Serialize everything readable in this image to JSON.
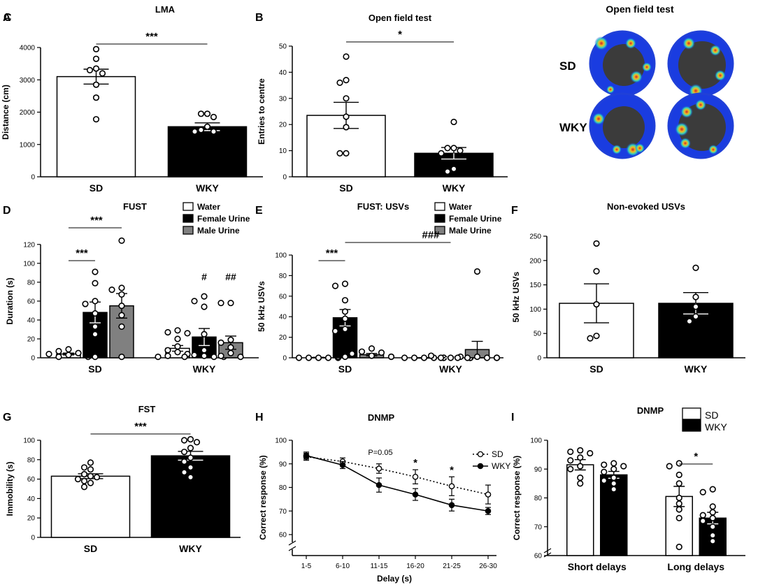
{
  "chart_data": [
    {
      "id": "A",
      "letter": "A",
      "type": "bar",
      "title": "LMA",
      "ylabel": "Distance (cm)",
      "ylim": [
        0,
        4000
      ],
      "yticks": [
        "0",
        "1000",
        "2000",
        "3000",
        "4000"
      ],
      "ytick_values": [
        0,
        1000,
        2000,
        3000,
        4000
      ],
      "categories": [
        "SD",
        "WKY"
      ],
      "groups": [
        {
          "label": "SD",
          "series": [
            {
              "name": "SD",
              "fill": "#ffffff",
              "mean": 3100,
              "sem": 230,
              "points": [
                3950,
                3650,
                3350,
                3300,
                3200,
                2850,
                2450,
                1780
              ]
            }
          ]
        },
        {
          "label": "WKY",
          "series": [
            {
              "name": "WKY",
              "fill": "#000000",
              "mean": 1550,
              "sem": 120,
              "points": [
                1950,
                1950,
                1850,
                1550,
                1450,
                1400,
                1400
              ]
            }
          ]
        }
      ],
      "annotations": [
        {
          "text": "***",
          "from": "SD",
          "to": "WKY"
        }
      ]
    },
    {
      "id": "B",
      "letter": "B",
      "type": "bar",
      "title": "Open field test",
      "ylabel": "Entries to centre",
      "ylim": [
        0,
        50
      ],
      "yticks": [
        "0",
        "10",
        "20",
        "30",
        "40",
        "50"
      ],
      "ytick_values": [
        0,
        10,
        20,
        30,
        40,
        50
      ],
      "categories": [
        "SD",
        "WKY"
      ],
      "groups": [
        {
          "label": "SD",
          "series": [
            {
              "name": "SD",
              "fill": "#ffffff",
              "mean": 23.5,
              "sem": 5.0,
              "points": [
                46,
                37,
                36,
                30,
                23,
                19,
                9,
                9
              ]
            }
          ]
        },
        {
          "label": "WKY",
          "series": [
            {
              "name": "WKY",
              "fill": "#000000",
              "mean": 9,
              "sem": 2.2,
              "points": [
                21,
                11,
                11,
                10,
                9,
                3,
                2
              ]
            }
          ]
        }
      ],
      "annotations": [
        {
          "text": "*",
          "from": "SD",
          "to": "WKY"
        }
      ]
    },
    {
      "id": "D",
      "letter": "D",
      "type": "bar",
      "title": "FUST",
      "ylabel": "Duration (s)",
      "ylim": [
        0,
        125
      ],
      "yticks": [
        "0",
        "20",
        "40",
        "60",
        "80",
        "100",
        "120"
      ],
      "ytick_values": [
        0,
        20,
        40,
        60,
        80,
        100,
        120
      ],
      "categories": [
        "SD",
        "WKY"
      ],
      "legend": [
        {
          "label": "Water",
          "fill": "#ffffff"
        },
        {
          "label": "Female Urine",
          "fill": "#000000"
        },
        {
          "label": "Male Urine",
          "fill": "#808080"
        }
      ],
      "groups": [
        {
          "label": "SD",
          "series": [
            {
              "name": "Water",
              "fill": "#ffffff",
              "mean": 4,
              "sem": 1.0,
              "points": [
                9,
                7,
                5,
                4,
                3,
                2,
                1,
                1
              ]
            },
            {
              "name": "Female Urine",
              "fill": "#000000",
              "mean": 48,
              "sem": 11,
              "points": [
                91,
                79,
                60,
                57,
                47,
                33,
                25,
                1
              ]
            },
            {
              "name": "Male Urine",
              "fill": "#808080",
              "mean": 55,
              "sem": 13,
              "points": [
                124,
                74,
                72,
                67,
                55,
                45,
                33,
                1
              ]
            }
          ]
        },
        {
          "label": "WKY",
          "series": [
            {
              "name": "Water",
              "fill": "#ffffff",
              "mean": 10,
              "sem": 3,
              "points": [
                29,
                27,
                26,
                20,
                12,
                8,
                6,
                4,
                2,
                1
              ]
            },
            {
              "name": "Female Urine",
              "fill": "#000000",
              "mean": 22,
              "sem": 9,
              "points": [
                65,
                60,
                54,
                25,
                8,
                3,
                2,
                1,
                1,
                1
              ]
            },
            {
              "name": "Male Urine",
              "fill": "#808080",
              "mean": 16,
              "sem": 7,
              "points": [
                58,
                58,
                19,
                16,
                11,
                5,
                2,
                1
              ]
            }
          ]
        }
      ],
      "annotations": [
        {
          "text": "***",
          "from": "SD.Water",
          "to": "SD.Female Urine"
        },
        {
          "text": "***",
          "from": "SD.Water",
          "to": "SD.Male Urine"
        },
        {
          "text": "#",
          "above": "WKY.Female Urine",
          "y": 82
        },
        {
          "text": "##",
          "above": "WKY.Male Urine",
          "y": 82
        }
      ]
    },
    {
      "id": "E",
      "letter": "E",
      "type": "bar",
      "title": "FUST: USVs",
      "ylabel": "50 kHz USVs",
      "ylim": [
        0,
        100
      ],
      "yticks": [
        "0",
        "20",
        "40",
        "60",
        "80",
        "100"
      ],
      "ytick_values": [
        0,
        20,
        40,
        60,
        80,
        100
      ],
      "categories": [
        "SD",
        "WKY"
      ],
      "legend": [
        {
          "label": "Water",
          "fill": "#ffffff"
        },
        {
          "label": "Female Urine",
          "fill": "#000000"
        },
        {
          "label": "Male Urine",
          "fill": "#808080"
        }
      ],
      "groups": [
        {
          "label": "SD",
          "series": [
            {
              "name": "Water",
              "fill": "#ffffff",
              "mean": 0.3,
              "sem": 0.2,
              "points": [
                0,
                0,
                0,
                0,
                0,
                1
              ]
            },
            {
              "name": "Female Urine",
              "fill": "#000000",
              "mean": 39,
              "sem": 8,
              "points": [
                72,
                70,
                56,
                45,
                38,
                28,
                26,
                1
              ]
            },
            {
              "name": "Male Urine",
              "fill": "#808080",
              "mean": 3,
              "sem": 1.2,
              "points": [
                9,
                6,
                5,
                4,
                2,
                1,
                1
              ]
            }
          ]
        },
        {
          "label": "WKY",
          "series": [
            {
              "name": "Water",
              "fill": "#ffffff",
              "mean": 0,
              "sem": 0,
              "points": [
                0,
                0,
                0,
                0,
                0,
                0,
                0
              ]
            },
            {
              "name": "Female Urine",
              "fill": "#000000",
              "mean": 0.3,
              "sem": 0.3,
              "points": [
                0,
                0,
                1,
                2,
                0,
                0,
                0
              ]
            },
            {
              "name": "Male Urine",
              "fill": "#808080",
              "mean": 8,
              "sem": 8,
              "points": [
                84,
                1,
                0,
                0,
                0,
                0,
                0,
                0
              ]
            }
          ]
        }
      ],
      "annotations": [
        {
          "text": "***",
          "from": "SD.Water",
          "to": "SD.Female Urine"
        },
        {
          "text": "###",
          "from": "SD.Female Urine",
          "to": "WKY.Female Urine"
        }
      ]
    },
    {
      "id": "F",
      "letter": "F",
      "type": "bar",
      "title": "Non-evoked USVs",
      "ylabel": "50 kHz USVs",
      "ylim": [
        0,
        250
      ],
      "yticks": [
        "0",
        "50",
        "100",
        "150",
        "200",
        "250"
      ],
      "ytick_values": [
        0,
        50,
        100,
        150,
        200,
        250
      ],
      "categories": [
        "SD",
        "WKY"
      ],
      "groups": [
        {
          "label": "SD",
          "series": [
            {
              "name": "SD",
              "fill": "#ffffff",
              "mean": 112,
              "sem": 40,
              "points": [
                235,
                178,
                110,
                45,
                40
              ]
            }
          ]
        },
        {
          "label": "WKY",
          "series": [
            {
              "name": "WKY",
              "fill": "#000000",
              "mean": 112,
              "sem": 22,
              "points": [
                185,
                125,
                105,
                85,
                75
              ]
            }
          ]
        }
      ],
      "annotations": []
    },
    {
      "id": "G",
      "letter": "G",
      "type": "bar",
      "title": "FST",
      "ylabel": "Immobility (s)",
      "ylim": [
        0,
        100
      ],
      "yticks": [
        "0",
        "20",
        "40",
        "60",
        "80",
        "100"
      ],
      "ytick_values": [
        0,
        20,
        40,
        60,
        80,
        100
      ],
      "categories": [
        "SD",
        "WKY"
      ],
      "groups": [
        {
          "label": "SD",
          "series": [
            {
              "name": "SD",
              "fill": "#ffffff",
              "mean": 63,
              "sem": 2.5,
              "points": [
                77,
                72,
                70,
                65,
                63,
                62,
                60,
                58,
                56,
                52
              ]
            }
          ]
        },
        {
          "label": "WKY",
          "series": [
            {
              "name": "WKY",
              "fill": "#000000",
              "mean": 84,
              "sem": 4.5,
              "points": [
                101,
                100,
                98,
                92,
                88,
                82,
                78,
                72,
                67,
                62
              ]
            }
          ]
        }
      ],
      "annotations": [
        {
          "text": "***",
          "from": "SD",
          "to": "WKY"
        }
      ]
    },
    {
      "id": "H",
      "letter": "H",
      "type": "line",
      "title": "DNMP",
      "xlabel": "Delay (s)",
      "ylabel": "Correct response (%)",
      "ylim": [
        60,
        100
      ],
      "categories": [
        "1-5",
        "6-10",
        "11-15",
        "16-20",
        "21-25",
        "26-30"
      ],
      "yticks": [
        "60",
        "70",
        "80",
        "90",
        "100"
      ],
      "ytick_values": [
        60,
        70,
        80,
        90,
        100
      ],
      "series": [
        {
          "name": "SD",
          "style": "dotted",
          "marker": "open",
          "values": [
            93,
            91,
            88,
            84.5,
            80.5,
            77
          ],
          "sem": [
            1.5,
            1.5,
            2.0,
            3.0,
            4.0,
            4.0
          ]
        },
        {
          "name": "WKY",
          "style": "solid",
          "marker": "filled",
          "values": [
            93.5,
            89.5,
            81,
            77,
            72.5,
            70
          ],
          "sem": [
            1.5,
            1.5,
            3.0,
            2.5,
            2.5,
            1.5
          ]
        }
      ],
      "annotations": [
        {
          "text": "P=0.05",
          "at": "11-15"
        },
        {
          "text": "*",
          "at": "16-20"
        },
        {
          "text": "*",
          "at": "21-25"
        }
      ]
    },
    {
      "id": "I",
      "letter": "I",
      "type": "bar",
      "title": "DNMP",
      "ylabel": "Correct response (%)",
      "ylim": [
        60,
        100
      ],
      "yticks": [
        "60",
        "70",
        "80",
        "90",
        "100"
      ],
      "ytick_values": [
        60,
        70,
        80,
        90,
        100
      ],
      "categories": [
        "Short delays",
        "Long delays"
      ],
      "legend": [
        {
          "label": "SD",
          "fill": "#ffffff"
        },
        {
          "label": "WKY",
          "fill": "#000000"
        }
      ],
      "groups": [
        {
          "label": "Short delays",
          "series": [
            {
              "name": "SD",
              "fill": "#ffffff",
              "mean": 91.5,
              "sem": 1.8,
              "points": [
                96.5,
                96,
                95.5,
                94,
                93,
                91,
                90,
                87,
                85
              ]
            },
            {
              "name": "WKY",
              "fill": "#000000",
              "mean": 88,
              "sem": 1.2,
              "points": [
                92,
                91.5,
                91,
                90,
                89,
                87,
                86,
                85,
                83
              ]
            }
          ]
        },
        {
          "label": "Long delays",
          "series": [
            {
              "name": "SD",
              "fill": "#ffffff",
              "mean": 80.5,
              "sem": 3.5,
              "points": [
                92,
                91,
                88,
                85,
                80,
                78,
                76,
                73,
                63
              ]
            },
            {
              "name": "WKY",
              "fill": "#000000",
              "mean": 73,
              "sem": 2.0,
              "points": [
                83,
                82,
                77,
                75,
                74,
                73,
                72,
                70,
                67,
                65
              ]
            }
          ]
        }
      ],
      "annotations": [
        {
          "text": "*",
          "from": "Long delays.SD",
          "to": "Long delays.WKY"
        }
      ]
    }
  ],
  "panel_c": {
    "letter": "C",
    "title": "Open field test",
    "row_labels": [
      "SD",
      "WKY"
    ]
  }
}
